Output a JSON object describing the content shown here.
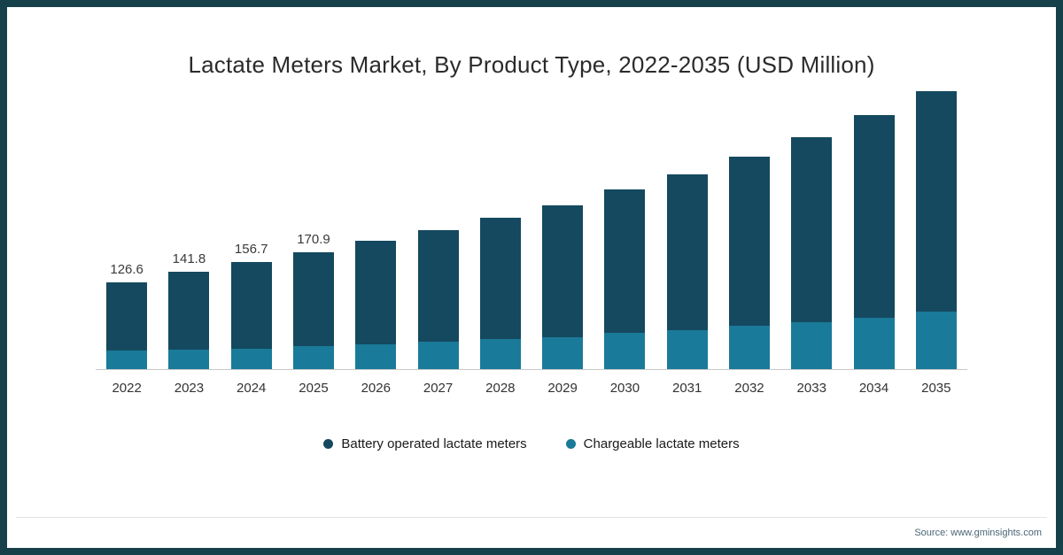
{
  "title": "Lactate Meters Market, By Product Type, 2022-2035 (USD Million)",
  "source_note": "Source: www.gminsights.com",
  "colors": {
    "frame": "#17414a",
    "axis": "#c9c9c9",
    "battery": "#14495f",
    "chargeable": "#1a7a99"
  },
  "legend": {
    "items": [
      {
        "label": "Battery operated lactate meters",
        "color": "#14495f"
      },
      {
        "label": "Chargeable lactate meters",
        "color": "#1a7a99"
      }
    ]
  },
  "chart_data": {
    "type": "bar",
    "stacked": true,
    "title": "Lactate Meters Market, By Product Type, 2022-2035 (USD Million)",
    "xlabel": "",
    "ylabel": "USD Million",
    "ylim": [
      0,
      440
    ],
    "grid": false,
    "legend_position": "bottom",
    "categories": [
      "2022",
      "2023",
      "2024",
      "2025",
      "2026",
      "2027",
      "2028",
      "2029",
      "2030",
      "2031",
      "2032",
      "2033",
      "2034",
      "2035"
    ],
    "series": [
      {
        "name": "Battery operated lactate meters",
        "color": "#14495f",
        "values": [
          99.6,
          113.3,
          126.5,
          137.3,
          151.0,
          163.6,
          177.1,
          192.4,
          209.6,
          227.2,
          247.0,
          269.8,
          296.1,
          323.0
        ]
      },
      {
        "name": "Chargeable lactate meters",
        "color": "#1a7a99",
        "values": [
          27.0,
          28.5,
          30.2,
          33.6,
          36.4,
          39.6,
          43.9,
          46.9,
          52.8,
          57.4,
          63.3,
          68.9,
          75.4,
          83.8
        ]
      }
    ],
    "totals": [
      126.6,
      141.8,
      156.7,
      170.9,
      187.4,
      203.2,
      221.0,
      239.3,
      262.4,
      284.6,
      310.3,
      338.7,
      371.5,
      406.8
    ],
    "data_labels": [
      "126.6",
      "141.8",
      "156.7",
      "170.9",
      "",
      "",
      "",
      "",
      "",
      "",
      "",
      "",
      "",
      ""
    ]
  }
}
